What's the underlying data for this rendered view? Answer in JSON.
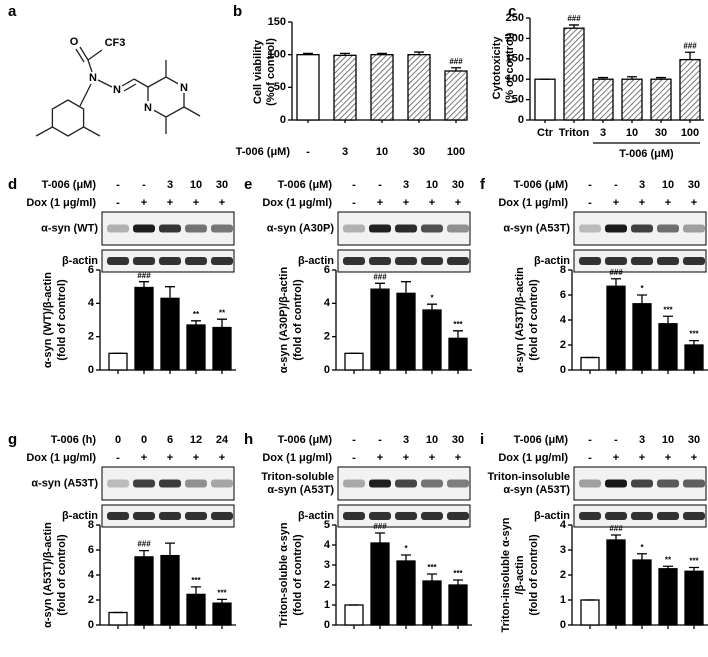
{
  "structure": {
    "panel": "a",
    "atoms": [
      "O",
      "CF3",
      "N",
      "N",
      "N",
      "N"
    ]
  },
  "chart_data": [
    {
      "panel": "b",
      "type": "bar",
      "ylabel": [
        "Cell viability",
        "(%of control)"
      ],
      "x_label": "T-006 (μM)",
      "categories": [
        "-",
        "3",
        "10",
        "30",
        "100"
      ],
      "values": [
        100,
        99,
        100,
        100,
        75
      ],
      "errors": [
        2,
        3,
        2,
        4,
        5
      ],
      "fills": [
        "white",
        "hatch",
        "hatch",
        "hatch",
        "hatch"
      ],
      "annotations": [
        null,
        null,
        null,
        null,
        "###"
      ],
      "ylim": [
        0,
        150
      ],
      "yticks": [
        0,
        50,
        100,
        150
      ]
    },
    {
      "panel": "c",
      "type": "bar",
      "ylabel": [
        "Cytotoxicity",
        "(% of control)"
      ],
      "categories": [
        "Ctr",
        "Triton",
        "3",
        "10",
        "30",
        "100"
      ],
      "group_label": "T-006 (μM)",
      "values": [
        100,
        225,
        100,
        100,
        100,
        148
      ],
      "errors": [
        0,
        8,
        4,
        6,
        4,
        18
      ],
      "fills": [
        "white",
        "hatch",
        "hatch",
        "hatch",
        "hatch",
        "hatch"
      ],
      "annotations": [
        null,
        "###",
        null,
        null,
        null,
        "###"
      ],
      "ylim": [
        0,
        250
      ],
      "yticks": [
        0,
        50,
        100,
        150,
        200,
        250
      ]
    },
    {
      "panel": "d",
      "type": "bar",
      "header": [
        {
          "label": "T-006 (μM)",
          "cells": [
            "-",
            "-",
            "3",
            "10",
            "30"
          ]
        },
        {
          "label": "Dox (1 μg/ml)",
          "cells": [
            "-",
            "+",
            "+",
            "+",
            "+"
          ]
        }
      ],
      "blots": [
        [
          "α-syn (WT)"
        ],
        [
          "β-actin"
        ]
      ],
      "ylabel": [
        "α-syn (WT)/β-actin",
        "(fold of control)"
      ],
      "values": [
        1,
        4.95,
        4.3,
        2.7,
        2.55
      ],
      "errors": [
        0,
        0.35,
        0.7,
        0.25,
        0.5
      ],
      "fills": [
        "white",
        "black",
        "black",
        "black",
        "black"
      ],
      "annotations": [
        null,
        "###",
        null,
        "**",
        "**"
      ],
      "ylim": [
        0,
        6
      ],
      "yticks": [
        0,
        2,
        4,
        6
      ]
    },
    {
      "panel": "e",
      "type": "bar",
      "header": [
        {
          "label": "T-006 (μM)",
          "cells": [
            "-",
            "-",
            "3",
            "10",
            "30"
          ]
        },
        {
          "label": "Dox (1 μg/ml)",
          "cells": [
            "-",
            "+",
            "+",
            "+",
            "+"
          ]
        }
      ],
      "blots": [
        [
          "α-syn (A30P)"
        ],
        [
          "β-actin"
        ]
      ],
      "ylabel": [
        "α-syn (A30P)/β-actin",
        "(fold of control)"
      ],
      "values": [
        1,
        4.85,
        4.6,
        3.6,
        1.9
      ],
      "errors": [
        0,
        0.35,
        0.7,
        0.35,
        0.45
      ],
      "fills": [
        "white",
        "black",
        "black",
        "black",
        "black"
      ],
      "annotations": [
        null,
        "###",
        null,
        "*",
        "***"
      ],
      "ylim": [
        0,
        6
      ],
      "yticks": [
        0,
        2,
        4,
        6
      ]
    },
    {
      "panel": "f",
      "type": "bar",
      "header": [
        {
          "label": "T-006 (μM)",
          "cells": [
            "-",
            "-",
            "3",
            "10",
            "30"
          ]
        },
        {
          "label": "Dox (1 μg/ml)",
          "cells": [
            "-",
            "+",
            "+",
            "+",
            "+"
          ]
        }
      ],
      "blots": [
        [
          "α-syn (A53T)"
        ],
        [
          "β-actin"
        ]
      ],
      "ylabel": [
        "α-syn (A53T)/β-actin",
        "(fold of control)"
      ],
      "values": [
        1,
        6.7,
        5.3,
        3.7,
        2.0
      ],
      "errors": [
        0,
        0.6,
        0.7,
        0.6,
        0.35
      ],
      "fills": [
        "white",
        "black",
        "black",
        "black",
        "black"
      ],
      "annotations": [
        null,
        "###",
        "*",
        "***",
        "***"
      ],
      "ylim": [
        0,
        8
      ],
      "yticks": [
        0,
        2,
        4,
        6,
        8
      ]
    },
    {
      "panel": "g",
      "type": "bar",
      "header": [
        {
          "label": "T-006 (h)",
          "cells": [
            "0",
            "0",
            "6",
            "12",
            "24"
          ]
        },
        {
          "label": "Dox (1 μg/ml)",
          "cells": [
            "-",
            "+",
            "+",
            "+",
            "+"
          ]
        }
      ],
      "blots": [
        [
          "α-syn (A53T)"
        ],
        [
          "β-actin"
        ]
      ],
      "ylabel": [
        "α-syn (A53T)/β-actin",
        "(fold of control)"
      ],
      "values": [
        1,
        5.45,
        5.55,
        2.45,
        1.75
      ],
      "errors": [
        0,
        0.5,
        1.0,
        0.6,
        0.3
      ],
      "fills": [
        "white",
        "black",
        "black",
        "black",
        "black"
      ],
      "annotations": [
        null,
        "###",
        null,
        "***",
        "***"
      ],
      "ylim": [
        0,
        8
      ],
      "yticks": [
        0,
        2,
        4,
        6,
        8
      ]
    },
    {
      "panel": "h",
      "type": "bar",
      "header": [
        {
          "label": "T-006 (μM)",
          "cells": [
            "-",
            "-",
            "3",
            "10",
            "30"
          ]
        },
        {
          "label": "Dox (1 μg/ml)",
          "cells": [
            "-",
            "+",
            "+",
            "+",
            "+"
          ]
        }
      ],
      "blots": [
        [
          "Triton-soluble",
          "α-syn (A53T)"
        ],
        [
          "β-actin"
        ]
      ],
      "ylabel": [
        "Triton-soluble α-syn",
        "(fold of control)"
      ],
      "values": [
        1,
        4.1,
        3.2,
        2.2,
        2.0
      ],
      "errors": [
        0,
        0.5,
        0.3,
        0.35,
        0.25
      ],
      "fills": [
        "white",
        "black",
        "black",
        "black",
        "black"
      ],
      "annotations": [
        null,
        "###",
        "*",
        "***",
        "***"
      ],
      "ylim": [
        0,
        5
      ],
      "yticks": [
        0,
        1,
        2,
        3,
        4,
        5
      ]
    },
    {
      "panel": "i",
      "type": "bar",
      "header": [
        {
          "label": "T-006 (μM)",
          "cells": [
            "-",
            "-",
            "3",
            "10",
            "30"
          ]
        },
        {
          "label": "Dox (1 μg/ml)",
          "cells": [
            "-",
            "+",
            "+",
            "+",
            "+"
          ]
        }
      ],
      "blots": [
        [
          "Triton-insoluble",
          "α-syn (A53T)"
        ],
        [
          "β-actin"
        ]
      ],
      "ylabel": [
        "Triton-insoluble α-syn",
        "/β-actin",
        "(fold of control)"
      ],
      "values": [
        1,
        3.4,
        2.6,
        2.25,
        2.15
      ],
      "errors": [
        0,
        0.2,
        0.25,
        0.1,
        0.15
      ],
      "fills": [
        "white",
        "black",
        "black",
        "black",
        "black"
      ],
      "annotations": [
        null,
        "###",
        "*",
        "**",
        "***"
      ],
      "ylim": [
        0,
        4
      ],
      "yticks": [
        0,
        1,
        2,
        3,
        4
      ]
    }
  ]
}
